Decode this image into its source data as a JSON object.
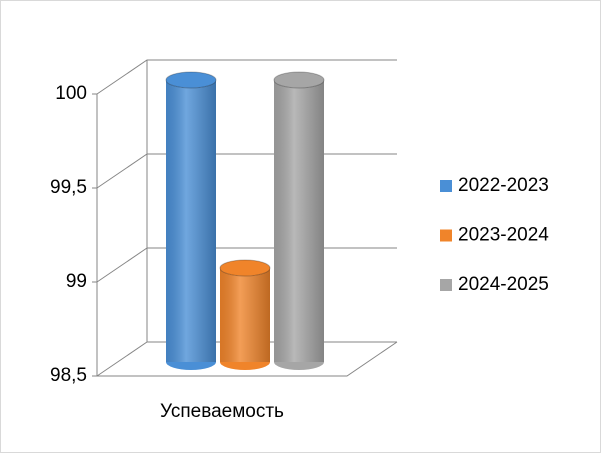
{
  "chart_data": {
    "type": "bar3d",
    "categories": [
      "Успеваемость"
    ],
    "series": [
      {
        "name": "2022-2023",
        "color": "#4a8fd6",
        "values": [
          100
        ]
      },
      {
        "name": "2023-2024",
        "color": "#f0842a",
        "values": [
          99
        ]
      },
      {
        "name": "2024-2025",
        "color": "#a6a6a6",
        "values": [
          100
        ]
      }
    ],
    "ylim": [
      98.5,
      100
    ],
    "yticks": [
      {
        "value": 98.5,
        "label": "98,5"
      },
      99,
      {
        "value": 99.5,
        "label": "99,5"
      },
      100
    ],
    "grid": true,
    "legend": "right"
  }
}
